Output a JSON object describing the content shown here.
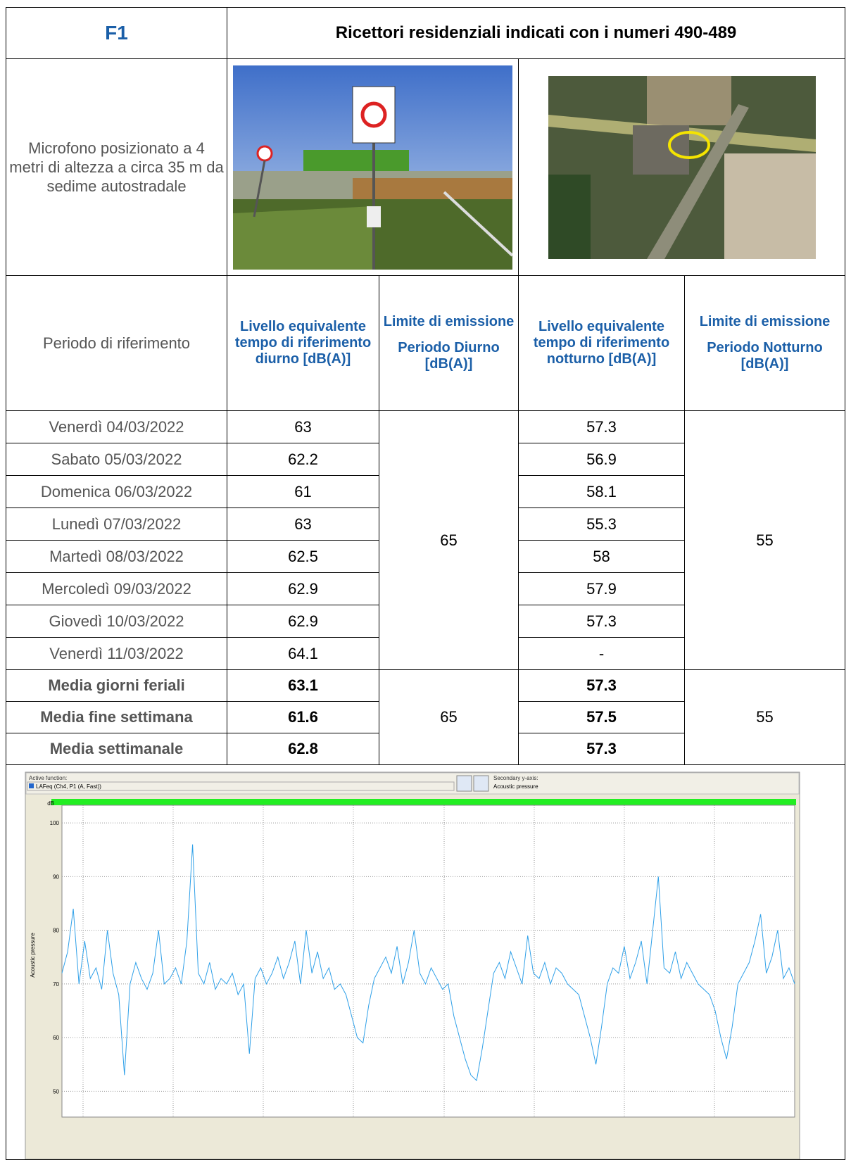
{
  "header": {
    "code": "F1",
    "title": "Ricettori residenziali indicati con i numeri 490-489"
  },
  "description": "Microfono posizionato a 4 metri di altezza a circa 35 m da sedime autostradale",
  "table": {
    "period_label": "Periodo di riferimento",
    "col_day": "Livello equivalente tempo di riferimento diurno [dB(A)]",
    "col_day_limit": [
      "Limite di emissione",
      "Periodo Diurno [dB(A)]"
    ],
    "col_night": "Livello equivalente tempo di riferimento notturno [dB(A)]",
    "col_night_limit": [
      "Limite di emissione",
      "Periodo Notturno [dB(A)]"
    ],
    "rows": [
      [
        "Venerdì 04/03/2022",
        63,
        57.3
      ],
      [
        "Sabato 05/03/2022",
        62.2,
        56.9
      ],
      [
        "Domenica 06/03/2022",
        61,
        58.1
      ],
      [
        "Lunedì 07/03/2022",
        63,
        55.3
      ],
      [
        "Martedì 08/03/2022",
        62.5,
        58
      ],
      [
        "Mercoledì 09/03/2022",
        62.9,
        57.9
      ],
      [
        "Giovedì 10/03/2022",
        62.9,
        57.3
      ],
      [
        "Venerdì 11/03/2022",
        64.1,
        "-"
      ]
    ],
    "limit_day": 65,
    "limit_night": 55,
    "summary_rows": [
      [
        "Media giorni feriali",
        63.1,
        57.3
      ],
      [
        "Media fine settimana",
        61.6,
        57.5
      ],
      [
        "Media settimanale",
        62.8,
        57.3
      ]
    ],
    "summary_limit_day": 65,
    "summary_limit_night": 55
  },
  "chart_data": {
    "type": "line",
    "active_function_label": "Active function:",
    "active_function": "LAFeq (Ch4, P1 (A, Fast))",
    "secondary_label": "Secondary y-axis:",
    "secondary": "Acoustic pressure",
    "y_unit": "dB",
    "y_label": "Acoustic pressure",
    "ylim": [
      46.5,
      103.3
    ],
    "yticks": [
      50,
      60,
      70,
      80,
      90,
      100
    ],
    "grid": true,
    "series": [
      {
        "color": "#2fa0e8",
        "values": [
          72,
          76,
          84,
          70,
          78,
          71,
          73,
          69,
          80,
          72,
          68,
          53,
          70,
          74,
          71,
          69,
          72,
          80,
          70,
          71,
          73,
          70,
          78,
          96,
          72,
          70,
          74,
          69,
          71,
          70,
          72,
          68,
          70,
          57,
          71,
          73,
          70,
          72,
          75,
          71,
          74,
          78,
          70,
          80,
          72,
          76,
          71,
          73,
          69,
          70,
          68,
          64,
          60,
          59,
          66,
          71,
          73,
          75,
          72,
          77,
          70,
          74,
          80,
          72,
          70,
          73,
          71,
          69,
          70,
          64,
          60,
          56,
          53,
          52,
          58,
          65,
          72,
          74,
          71,
          76,
          73,
          70,
          79,
          72,
          71,
          74,
          70,
          73,
          72,
          70,
          69,
          68,
          64,
          60,
          55,
          62,
          70,
          73,
          72,
          77,
          71,
          74,
          78,
          70,
          80,
          90,
          73,
          72,
          76,
          71,
          74,
          72,
          70,
          69,
          68,
          65,
          60,
          56,
          62,
          70,
          72,
          74,
          78,
          83,
          72,
          75,
          80,
          71,
          73,
          70
        ]
      }
    ]
  }
}
